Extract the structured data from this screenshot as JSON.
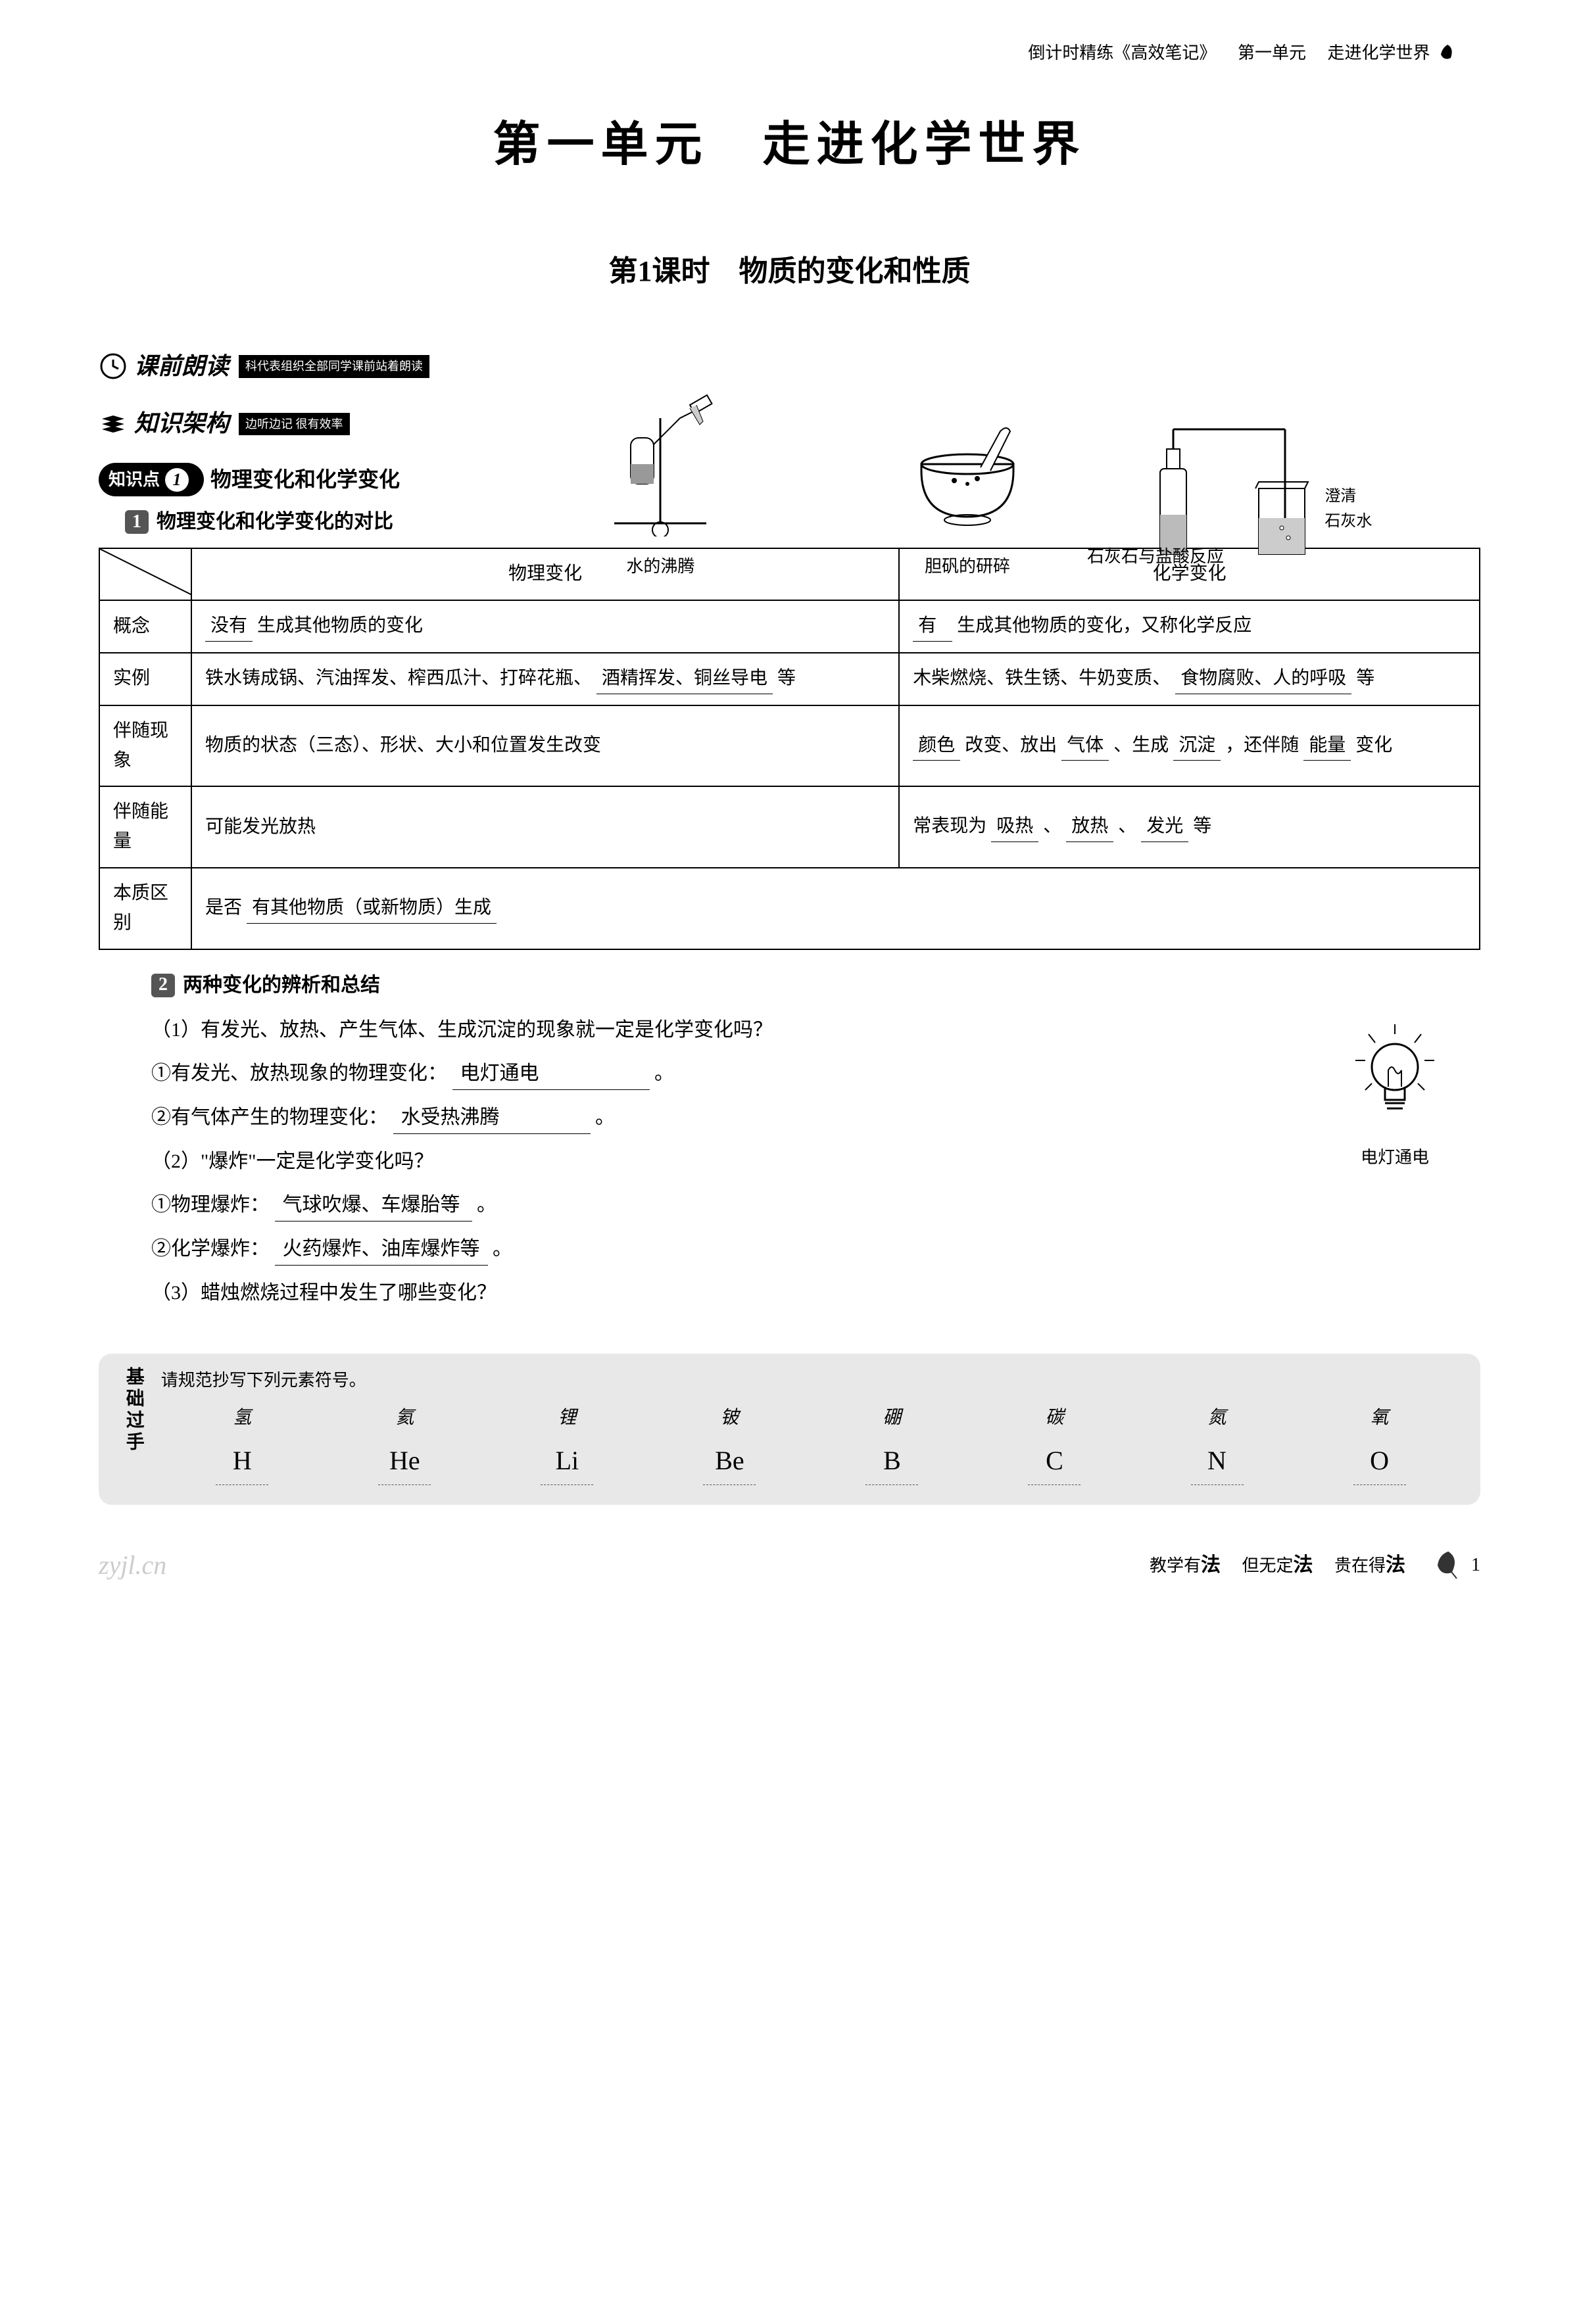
{
  "header": {
    "series": "倒计时精练《高效笔记》",
    "unit": "第一单元",
    "chapter": "走进化学世界"
  },
  "main_title": "第一单元　走进化学世界",
  "lesson_title": "第1课时　物质的变化和性质",
  "section_preread": {
    "label": "课前朗读",
    "sub": "科代表组织全部同学课前站着朗读"
  },
  "section_structure": {
    "label": "知识架构",
    "sub": "边听边记 很有效率"
  },
  "diagrams": {
    "boiling": "水的沸腾",
    "grinding": "胆矾的研碎",
    "acid_reaction": "石灰石与盐酸反应",
    "side_label_1": "澄清",
    "side_label_2": "石灰水"
  },
  "topic1": {
    "number": "1",
    "pill_prefix": "知识点",
    "title": "物理变化和化学变化"
  },
  "subtopic1": {
    "num": "1",
    "title": "物理变化和化学变化的对比"
  },
  "table": {
    "col1": "物理变化",
    "col2": "化学变化",
    "rows": {
      "concept": {
        "label": "概念",
        "c1_blank": "没有",
        "c1_rest": "生成其他物质的变化",
        "c2_blank": "有",
        "c2_rest": "生成其他物质的变化，又称化学反应"
      },
      "examples": {
        "label": "实例",
        "c1_text1": "铁水铸成锅、汽油挥发、榨西瓜汁、打碎花瓶、",
        "c1_blank": "酒精挥发、铜丝导电",
        "c1_text2": "等",
        "c2_text1": "木柴燃烧、铁生锈、牛奶变质、",
        "c2_blank": "食物腐败、人的呼吸",
        "c2_text2": "等"
      },
      "phenomena": {
        "label": "伴随现象",
        "c1": "物质的状态（三态）、形状、大小和位置发生改变",
        "c2_b1": "颜色",
        "c2_t1": "改变、放出",
        "c2_b2": "气体",
        "c2_t2": "、生成",
        "c2_b3": "沉淀",
        "c2_t3": "，还伴随",
        "c2_b4": "能量",
        "c2_t4": "变化"
      },
      "energy": {
        "label": "伴随能量",
        "c1": "可能发光放热",
        "c2_t1": "常表现为",
        "c2_b1": "吸热",
        "c2_s1": "、",
        "c2_b2": "放热",
        "c2_s2": "、",
        "c2_b3": "发光",
        "c2_t2": "等"
      },
      "essence": {
        "label": "本质区别",
        "c1_t1": "是否",
        "c1_blank": "有其他物质（或新物质）生成"
      }
    }
  },
  "subtopic2": {
    "num": "2",
    "title": "两种变化的辨析和总结"
  },
  "questions": {
    "q1": "（1）有发光、放热、产生气体、生成沉淀的现象就一定是化学变化吗？",
    "q1a_label": "①有发光、放热现象的物理变化：",
    "q1a_ans": "电灯通电",
    "q1b_label": "②有气体产生的物理变化：",
    "q1b_ans": "水受热沸腾",
    "q2": "（2）\"爆炸\"一定是化学变化吗？",
    "q2a_label": "①物理爆炸：",
    "q2a_ans": "气球吹爆、车爆胎等",
    "q2b_label": "②化学爆炸：",
    "q2b_ans": "火药爆炸、油库爆炸等",
    "q3": "（3）蜡烛燃烧过程中发生了哪些变化？"
  },
  "bulb_caption": "电灯通电",
  "footer": {
    "side_label": "基础过手",
    "instruction": "请规范抄写下列元素符号。",
    "elements": [
      {
        "name": "氢",
        "symbol": "H"
      },
      {
        "name": "氦",
        "symbol": "He"
      },
      {
        "name": "锂",
        "symbol": "Li"
      },
      {
        "name": "铍",
        "symbol": "Be"
      },
      {
        "name": "硼",
        "symbol": "B"
      },
      {
        "name": "碳",
        "symbol": "C"
      },
      {
        "name": "氮",
        "symbol": "N"
      },
      {
        "name": "氧",
        "symbol": "O"
      }
    ]
  },
  "page_footer": {
    "watermark": "zyjl.cn",
    "motto_1": "教学有",
    "motto_b1": "法",
    "motto_2": "　但无定",
    "motto_b2": "法",
    "motto_3": "　贵在得",
    "motto_b3": "法",
    "page_num": "1"
  },
  "punctuation": {
    "period": "。",
    "dunhao": "、"
  }
}
